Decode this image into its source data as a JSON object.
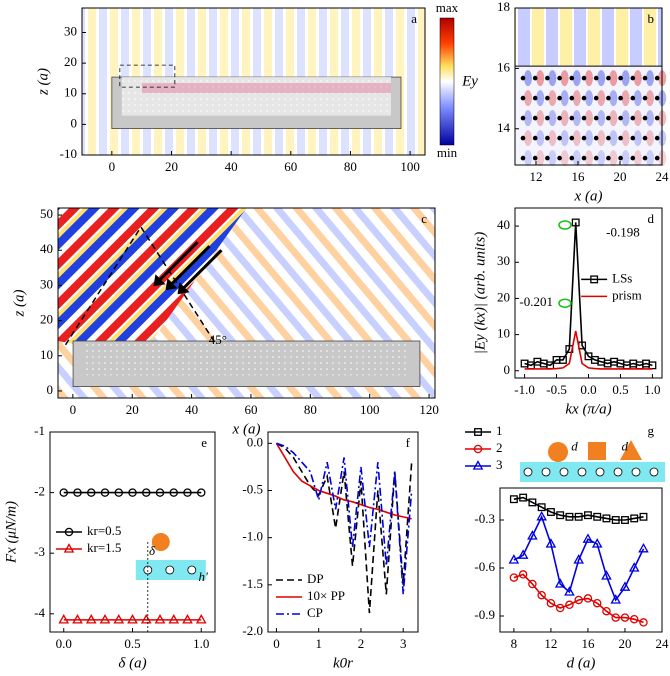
{
  "chart_data": [
    {
      "type": "field-map",
      "label": "a",
      "ylabel": "z (a)",
      "xlim": [
        -10,
        105
      ],
      "ylim": [
        -10,
        38
      ],
      "xticks": [
        0,
        20,
        40,
        60,
        80,
        100
      ],
      "yticks": [
        -10,
        0,
        10,
        20,
        30
      ],
      "colorbar": {
        "max": "max",
        "min": "min",
        "label": "Ey"
      }
    },
    {
      "type": "field-map",
      "label": "b",
      "xlabel": "x (a)",
      "xlim": [
        10,
        24
      ],
      "ylim": [
        12.8,
        18
      ],
      "xticks": [
        12,
        16,
        20,
        24
      ],
      "yticks": [
        14,
        16,
        18
      ]
    },
    {
      "type": "field-map",
      "label": "c",
      "xlabel": "x (a)",
      "ylabel": "z (a)",
      "xlim": [
        -5,
        122
      ],
      "ylim": [
        -2,
        52
      ],
      "xticks": [
        0,
        20,
        40,
        60,
        80,
        100,
        120
      ],
      "yticks": [
        0,
        10,
        20,
        30,
        40,
        50
      ],
      "annotations": [
        "45°"
      ]
    },
    {
      "type": "line",
      "label": "d",
      "xlabel": "kx (π/a)",
      "ylabel": "|Ey (kx)| (arb. units)",
      "xlim": [
        -1.15,
        1.15
      ],
      "ylim": [
        -2,
        45
      ],
      "xticks": [
        {
          "value": -1,
          "label": "-1.0"
        },
        -0.5,
        {
          "value": 0,
          "label": "0.0"
        },
        0.5,
        {
          "value": 1,
          "label": "1.0"
        }
      ],
      "yticks": [
        0,
        10,
        20,
        30,
        40
      ],
      "legend": "right",
      "x": [
        -1,
        -0.9,
        -0.8,
        -0.7,
        -0.6,
        -0.5,
        -0.4,
        -0.3,
        -0.2,
        -0.1,
        0,
        0.1,
        0.2,
        0.3,
        0.4,
        0.5,
        0.6,
        0.7,
        0.8,
        0.9,
        1
      ],
      "series": [
        {
          "name": "LSs",
          "color": "#000000",
          "marker": "square",
          "dash": "solid",
          "values": [
            2,
            1.5,
            2.5,
            2,
            1.5,
            3,
            3,
            6,
            41,
            7,
            4,
            3,
            2.5,
            2,
            2.5,
            2,
            1.5,
            2,
            1.5,
            2,
            1.5
          ]
        },
        {
          "name": "prism",
          "color": "#e00000",
          "marker": "none",
          "dash": "solid",
          "values": [
            0.5,
            0.5,
            0.5,
            0.5,
            0.5,
            0.6,
            0.8,
            2,
            11,
            2,
            0.8,
            0.6,
            0.5,
            0.5,
            0.5,
            0.5,
            0.5,
            0.5,
            0.5,
            0.5,
            0.5
          ]
        }
      ],
      "annotations": [
        "-0.198",
        "-0.201"
      ]
    },
    {
      "type": "line",
      "label": "e",
      "xlabel": "δ (a)",
      "ylabel": "Fx (μN/m)",
      "xlim": [
        -0.1,
        1.1
      ],
      "ylim": [
        -4.3,
        -1
      ],
      "xticks": [
        {
          "value": 0,
          "label": "0.0"
        },
        0.5,
        {
          "value": 1,
          "label": "1.0"
        }
      ],
      "yticks": [
        -1,
        -2,
        -3,
        -4
      ],
      "legend": "left",
      "x": [
        0,
        0.1,
        0.2,
        0.3,
        0.4,
        0.5,
        0.6,
        0.7,
        0.8,
        0.9,
        1
      ],
      "series": [
        {
          "name": "kr=0.5",
          "color": "#000000",
          "marker": "circle",
          "dash": "solid",
          "values": [
            -2,
            -2,
            -2,
            -2,
            -2,
            -2,
            -2,
            -2,
            -2,
            -2,
            -2
          ]
        },
        {
          "name": "kr=1.5",
          "color": "#e00000",
          "marker": "triangle",
          "dash": "solid",
          "values": [
            -4.1,
            -4.1,
            -4.1,
            -4.1,
            -4.1,
            -4.1,
            -4.1,
            -4.1,
            -4.1,
            -4.1,
            -4.1
          ]
        }
      ],
      "annotations": [
        "δ",
        "h'"
      ]
    },
    {
      "type": "line",
      "label": "f",
      "xlabel": "k0r",
      "xlim": [
        -0.2,
        3.35
      ],
      "ylim": [
        -2,
        0.12
      ],
      "xticks": [
        0,
        1,
        2,
        3
      ],
      "yticks": [
        {
          "value": 0,
          "label": "0.0"
        },
        -0.5,
        {
          "value": -1,
          "label": "-1.0"
        },
        -1.5,
        {
          "value": -2,
          "label": "-2.0"
        }
      ],
      "legend": "lower left",
      "x": [
        0,
        0.2,
        0.4,
        0.6,
        0.8,
        1,
        1.2,
        1.4,
        1.6,
        1.8,
        2,
        2.2,
        2.4,
        2.6,
        2.8,
        3,
        3.2
      ],
      "series": [
        {
          "name": "DP",
          "color": "#000000",
          "marker": "none",
          "dash": "dash",
          "values": [
            0,
            -0.05,
            -0.15,
            -0.3,
            -0.45,
            -0.55,
            -0.35,
            -0.9,
            -0.3,
            -1.3,
            -0.4,
            -1.8,
            -0.5,
            -1.6,
            -0.3,
            -1.5,
            -0.2
          ]
        },
        {
          "name": "10× PP",
          "color": "#e00000",
          "marker": "none",
          "dash": "solid",
          "values": [
            0,
            -0.15,
            -0.3,
            -0.4,
            -0.45,
            -0.5,
            -0.53,
            -0.56,
            -0.6,
            -0.62,
            -0.65,
            -0.68,
            -0.7,
            -0.73,
            -0.76,
            -0.78,
            -0.8
          ]
        },
        {
          "name": "CP",
          "color": "#0000e0",
          "marker": "none",
          "dash": "dashdot",
          "values": [
            0,
            -0.03,
            -0.1,
            -0.2,
            -0.3,
            -0.6,
            -0.2,
            -0.7,
            -0.15,
            -1.1,
            -0.25,
            -1.1,
            -0.2,
            -1.3,
            -0.3,
            -1.6,
            -0.5
          ]
        }
      ]
    },
    {
      "type": "line",
      "label": "g",
      "xlabel": "d (a)",
      "xlim": [
        6.5,
        24
      ],
      "ylim": [
        -1,
        -0.1
      ],
      "xticks": [
        8,
        12,
        16,
        20,
        24
      ],
      "yticks": [
        -0.3,
        -0.6,
        -0.9
      ],
      "legend": "outside top left",
      "x": [
        8,
        9,
        10,
        11,
        12,
        13,
        14,
        15,
        16,
        17,
        18,
        19,
        20,
        21,
        22
      ],
      "series": [
        {
          "name": "1",
          "color": "#000000",
          "marker": "square",
          "dash": "solid",
          "values": [
            -0.17,
            -0.16,
            -0.19,
            -0.22,
            -0.25,
            -0.27,
            -0.28,
            -0.28,
            -0.27,
            -0.28,
            -0.29,
            -0.3,
            -0.3,
            -0.29,
            -0.28
          ]
        },
        {
          "name": "2",
          "color": "#e00000",
          "marker": "circle",
          "dash": "solid",
          "values": [
            -0.66,
            -0.64,
            -0.7,
            -0.77,
            -0.82,
            -0.85,
            -0.83,
            -0.8,
            -0.79,
            -0.82,
            -0.87,
            -0.91,
            -0.91,
            -0.92,
            -0.94
          ]
        },
        {
          "name": "3",
          "color": "#0000e0",
          "marker": "triangle",
          "dash": "solid",
          "values": [
            -0.55,
            -0.52,
            -0.4,
            -0.28,
            -0.45,
            -0.7,
            -0.75,
            -0.55,
            -0.42,
            -0.45,
            -0.65,
            -0.8,
            -0.72,
            -0.6,
            -0.48
          ]
        }
      ],
      "annotations": [
        "d",
        "d"
      ]
    }
  ]
}
